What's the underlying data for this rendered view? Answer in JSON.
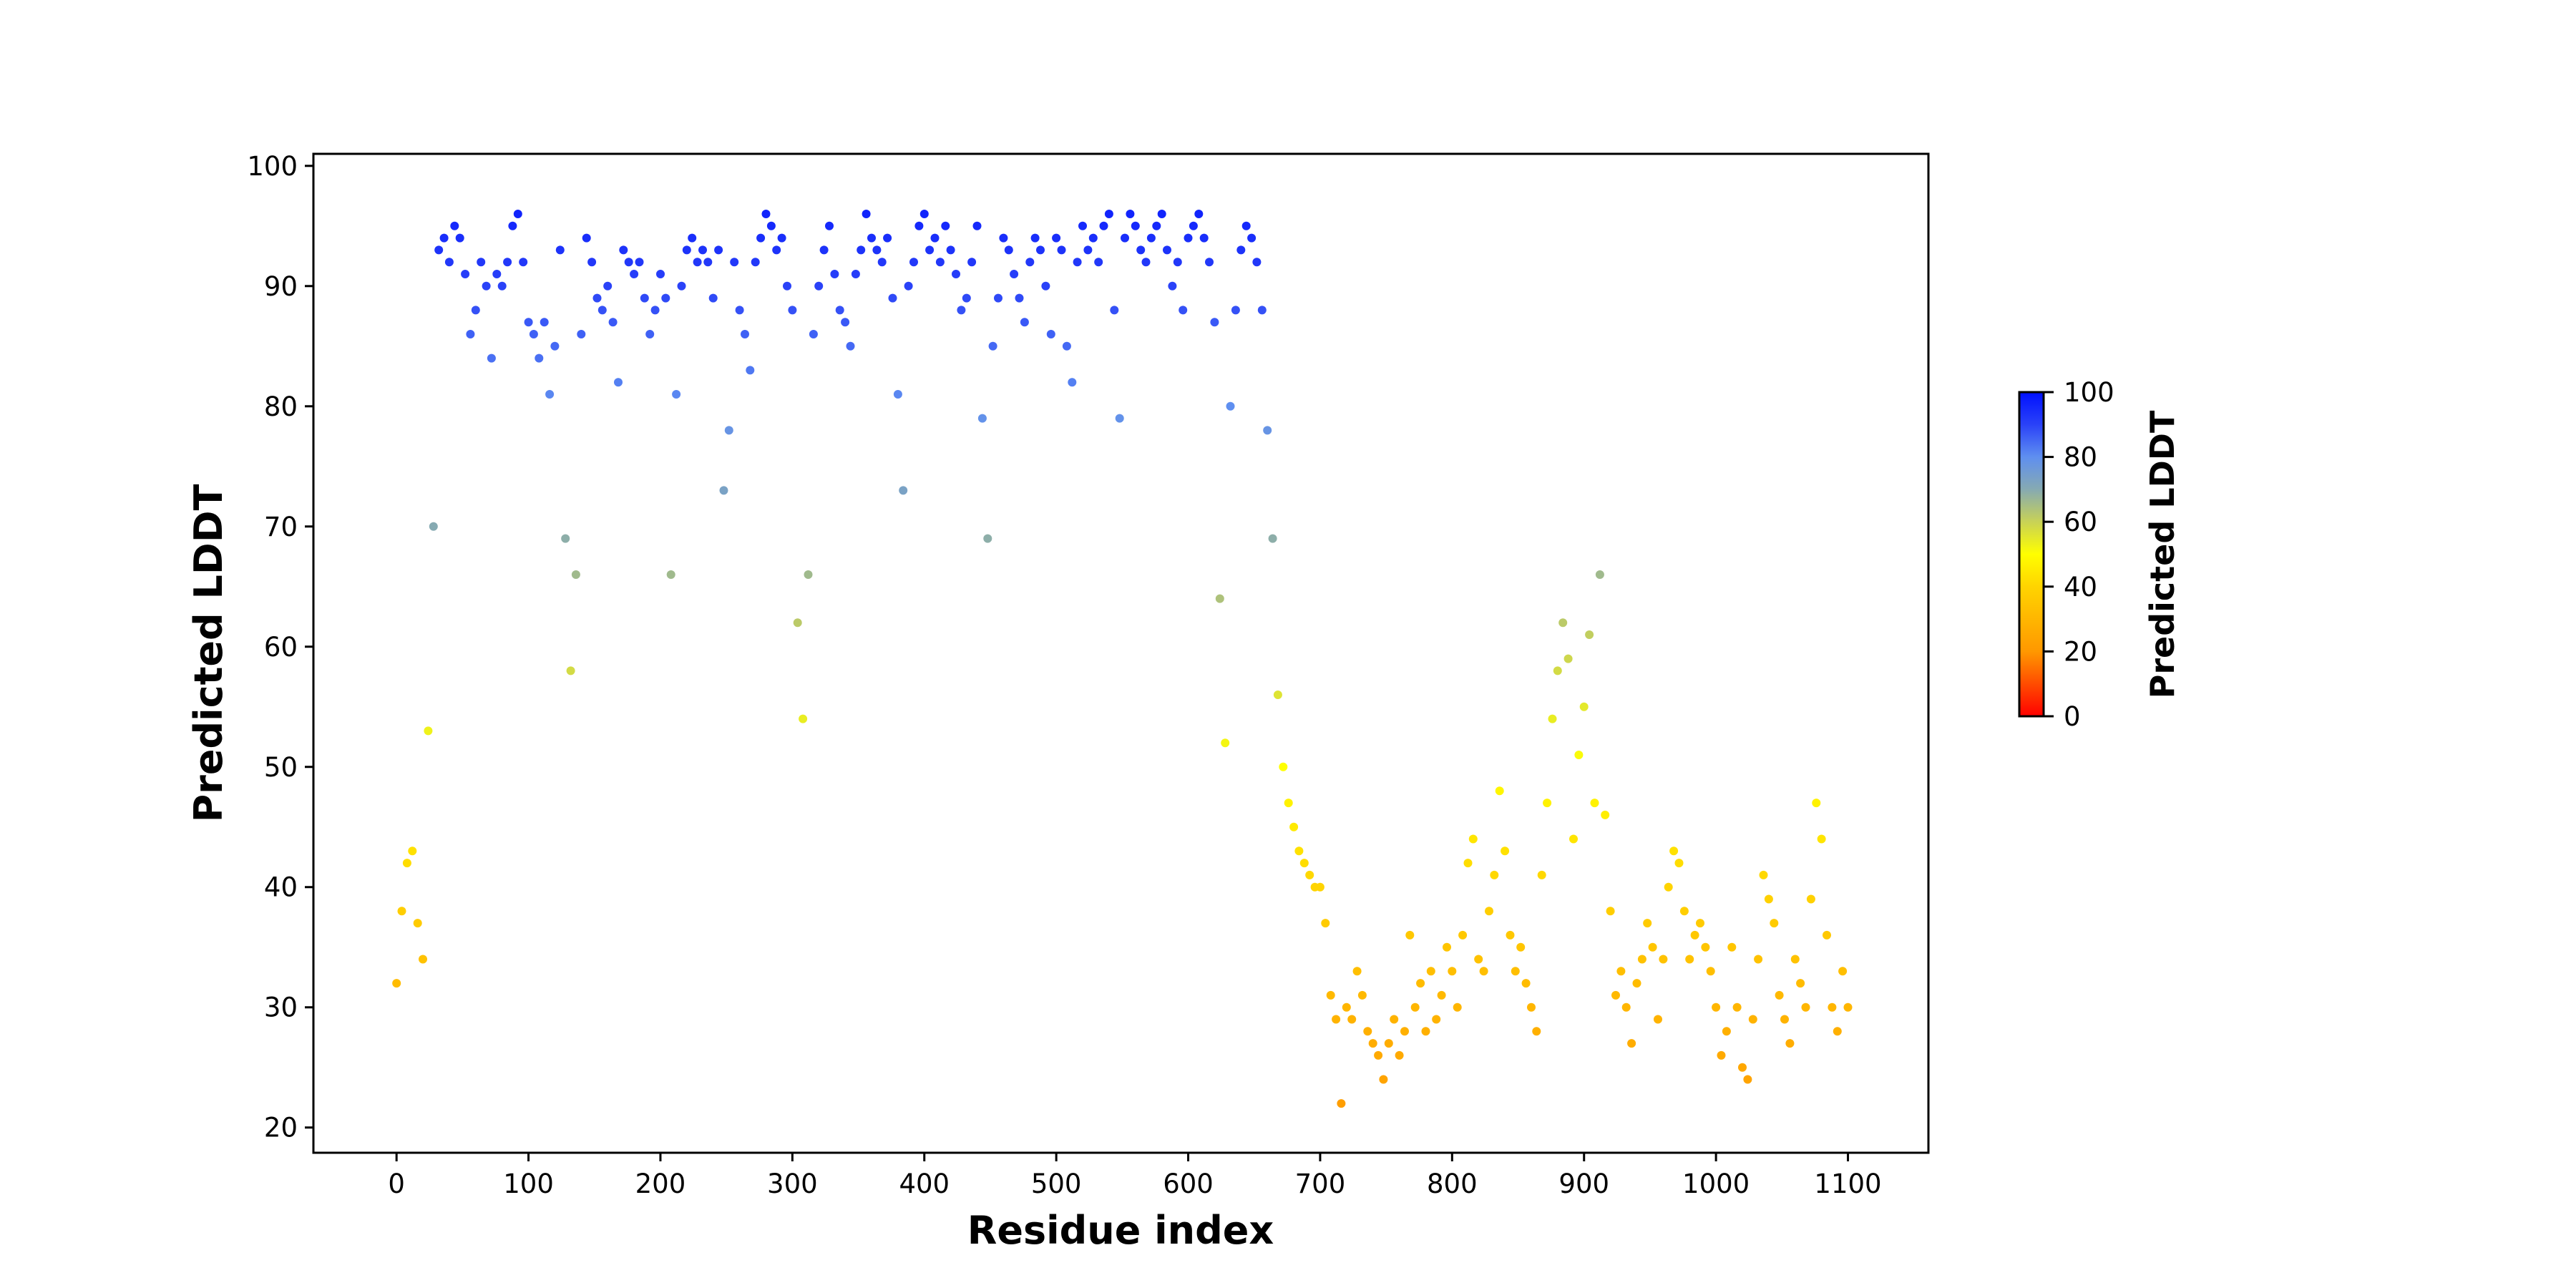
{
  "chart_data": {
    "type": "scatter",
    "title": "",
    "xlabel": "Residue index",
    "ylabel": "Predicted LDDT",
    "xlim": [
      -63,
      1161
    ],
    "ylim": [
      17.9,
      101
    ],
    "grid": false,
    "x_ticks": [
      0,
      100,
      200,
      300,
      400,
      500,
      600,
      700,
      800,
      900,
      1000,
      1100
    ],
    "y_ticks": [
      20,
      30,
      40,
      50,
      60,
      70,
      80,
      90,
      100
    ],
    "x_step": 4,
    "values": [
      32,
      38,
      42,
      43,
      37,
      34,
      53,
      70,
      93,
      94,
      92,
      95,
      94,
      91,
      86,
      88,
      92,
      90,
      84,
      91,
      90,
      92,
      95,
      96,
      92,
      87,
      86,
      84,
      87,
      81,
      85,
      93,
      69,
      58,
      66,
      86,
      94,
      92,
      89,
      88,
      90,
      87,
      82,
      93,
      92,
      91,
      92,
      89,
      86,
      88,
      91,
      89,
      66,
      81,
      90,
      93,
      94,
      92,
      93,
      92,
      89,
      93,
      73,
      78,
      92,
      88,
      86,
      83,
      92,
      94,
      96,
      95,
      93,
      94,
      90,
      88,
      62,
      54,
      66,
      86,
      90,
      93,
      95,
      91,
      88,
      87,
      85,
      91,
      93,
      96,
      94,
      93,
      92,
      94,
      89,
      81,
      73,
      90,
      92,
      95,
      96,
      93,
      94,
      92,
      95,
      93,
      91,
      88,
      89,
      92,
      95,
      79,
      69,
      85,
      89,
      94,
      93,
      91,
      89,
      87,
      92,
      94,
      93,
      90,
      86,
      94,
      93,
      85,
      82,
      92,
      95,
      93,
      94,
      92,
      95,
      96,
      88,
      79,
      94,
      96,
      95,
      93,
      92,
      94,
      95,
      96,
      93,
      90,
      92,
      88,
      94,
      95,
      96,
      94,
      92,
      87,
      64,
      52,
      80,
      88,
      93,
      95,
      94,
      92,
      88,
      78,
      69,
      56,
      50,
      47,
      45,
      43,
      42,
      41,
      40,
      40,
      37,
      31,
      29,
      22,
      30,
      29,
      33,
      31,
      28,
      27,
      26,
      24,
      27,
      29,
      26,
      28,
      36,
      30,
      32,
      28,
      33,
      29,
      31,
      35,
      33,
      30,
      36,
      42,
      44,
      34,
      33,
      38,
      41,
      48,
      43,
      36,
      33,
      35,
      32,
      30,
      28,
      41,
      47,
      54,
      58,
      62,
      59,
      44,
      51,
      55,
      61,
      47,
      66,
      46,
      38,
      31,
      33,
      30,
      27,
      32,
      34,
      37,
      35,
      29,
      34,
      40,
      43,
      42,
      38,
      34,
      36,
      37,
      35,
      33,
      30,
      26,
      28,
      35,
      30,
      25,
      24,
      29,
      34,
      41,
      39,
      37,
      31,
      29,
      27,
      34,
      32,
      30,
      39,
      47,
      44,
      36,
      30,
      28,
      33,
      30
    ],
    "colorbar": {
      "label": "Predicted LDDT",
      "range": [
        0,
        100
      ],
      "ticks": [
        0,
        20,
        40,
        60,
        80,
        100
      ],
      "colormap": [
        {
          "v": 0,
          "color": "#ff0000"
        },
        {
          "v": 20,
          "color": "#ff9800"
        },
        {
          "v": 40,
          "color": "#ffd400"
        },
        {
          "v": 50,
          "color": "#ffff00"
        },
        {
          "v": 60,
          "color": "#c8d256"
        },
        {
          "v": 70,
          "color": "#86aab2"
        },
        {
          "v": 80,
          "color": "#5f8ff0"
        },
        {
          "v": 90,
          "color": "#2a42f8"
        },
        {
          "v": 100,
          "color": "#0010ff"
        }
      ]
    }
  }
}
